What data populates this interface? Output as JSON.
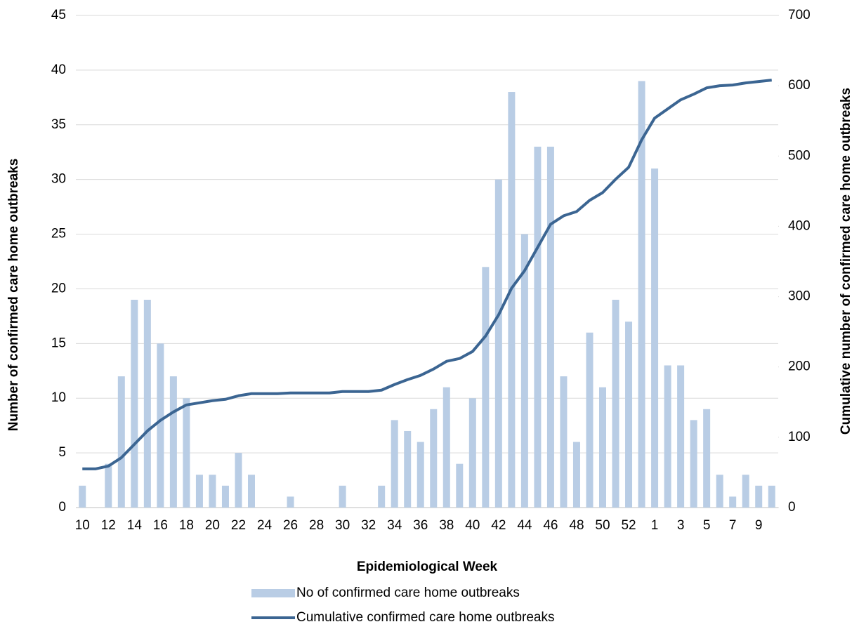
{
  "chart_data": {
    "type": "bar_line",
    "x_label": "Epidemiological Week",
    "y_label": "Number of confirmed care home outbreaks",
    "y2_label": "Cumulative number of confirmed care home outbreaks",
    "categories": [
      "10",
      null,
      "12",
      null,
      "14",
      null,
      "16",
      null,
      "18",
      null,
      "20",
      null,
      "22",
      null,
      "24",
      null,
      "26",
      null,
      "28",
      null,
      "30",
      null,
      "32",
      null,
      "34",
      null,
      "36",
      null,
      "38",
      null,
      "40",
      null,
      "42",
      null,
      "44",
      null,
      "46",
      null,
      "48",
      null,
      "50",
      null,
      "52",
      null,
      "1",
      null,
      "3",
      null,
      "5",
      null,
      "7",
      null,
      "9",
      null
    ],
    "series": [
      {
        "name": "No of confirmed care home outbreaks",
        "type": "bar",
        "color": "#b9cde5",
        "values": [
          2,
          0,
          4,
          12,
          19,
          19,
          15,
          12,
          10,
          3,
          3,
          2,
          5,
          3,
          0,
          0,
          1,
          0,
          0,
          0,
          2,
          0,
          0,
          2,
          8,
          7,
          6,
          9,
          11,
          4,
          10,
          22,
          30,
          38,
          25,
          33,
          33,
          12,
          6,
          16,
          11,
          19,
          17,
          39,
          31,
          13,
          13,
          8,
          9,
          3,
          1,
          3,
          2,
          2
        ]
      },
      {
        "name": "Cumulative confirmed care home outbreaks",
        "type": "line",
        "axis": "y2",
        "color": "#3b6592",
        "values": [
          55,
          55,
          59,
          71,
          90,
          109,
          124,
          136,
          146,
          149,
          152,
          154,
          159,
          162,
          162,
          162,
          163,
          163,
          163,
          163,
          165,
          165,
          165,
          167,
          175,
          182,
          188,
          197,
          208,
          212,
          222,
          244,
          274,
          312,
          337,
          370,
          403,
          415,
          421,
          437,
          448,
          467,
          484,
          523,
          554,
          567,
          580,
          588,
          597,
          600,
          601,
          604,
          606,
          608
        ]
      }
    ],
    "ylim": [
      0,
      45
    ],
    "yticks": [
      0,
      5,
      10,
      15,
      20,
      25,
      30,
      35,
      40,
      45
    ],
    "y2lim": [
      0,
      700
    ],
    "y2ticks": [
      0,
      100,
      200,
      300,
      400,
      500,
      600,
      700
    ],
    "grid": true,
    "legend": "bottom"
  }
}
